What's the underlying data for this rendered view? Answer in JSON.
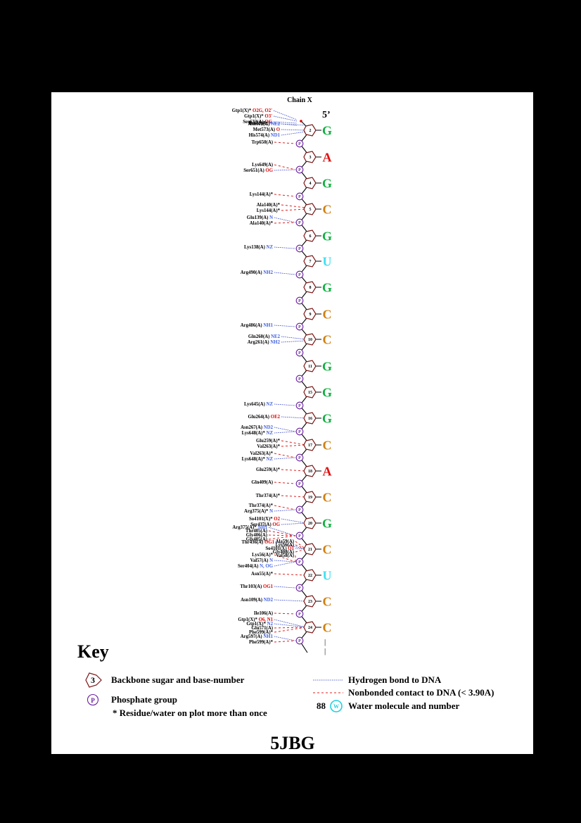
{
  "chain_title": "Chain X",
  "five_prime": "5’",
  "pdb_id": "5JBG",
  "nucleotides": [
    {
      "num": "2",
      "base": "G",
      "color": "#10b040"
    },
    {
      "num": "3",
      "base": "A",
      "color": "#e01010"
    },
    {
      "num": "4",
      "base": "G",
      "color": "#10b040"
    },
    {
      "num": "5",
      "base": "C",
      "color": "#d08010"
    },
    {
      "num": "6",
      "base": "G",
      "color": "#10b040"
    },
    {
      "num": "7",
      "base": "U",
      "color": "#40e0f0"
    },
    {
      "num": "8",
      "base": "G",
      "color": "#10b040"
    },
    {
      "num": "9",
      "base": "C",
      "color": "#d08010"
    },
    {
      "num": "10",
      "base": "C",
      "color": "#d08010"
    },
    {
      "num": "11",
      "base": "G",
      "color": "#10b040"
    },
    {
      "num": "15",
      "base": "G",
      "color": "#10b040"
    },
    {
      "num": "16",
      "base": "G",
      "color": "#10b040"
    },
    {
      "num": "17",
      "base": "C",
      "color": "#d08010"
    },
    {
      "num": "18",
      "base": "A",
      "color": "#e01010"
    },
    {
      "num": "19",
      "base": "C",
      "color": "#d08010"
    },
    {
      "num": "20",
      "base": "G",
      "color": "#10b040"
    },
    {
      "num": "21",
      "base": "C",
      "color": "#d08010"
    },
    {
      "num": "22",
      "base": "U",
      "color": "#40e0f0"
    },
    {
      "num": "23",
      "base": "C",
      "color": "#d08010"
    },
    {
      "num": "24",
      "base": "C",
      "color": "#d08010"
    }
  ],
  "phosphate_label": "P",
  "residues": [
    {
      "name": "Gtp1(X)*",
      "atom": "O2G, O2'",
      "t": "o",
      "type": "hb",
      "size": "n"
    },
    {
      "name": "Gtp1(X)*",
      "atom": "O3'",
      "t": "o",
      "type": "hb",
      "size": "n"
    },
    {
      "name": "Ser632(A)",
      "atom": "OG",
      "t": "o",
      "type": "hb",
      "size": "n"
    },
    {
      "name": "Ile630(A)",
      "atom": "N",
      "t": "n",
      "type": "hb",
      "size": "n"
    },
    {
      "name": "Asn609(A)",
      "atom": "NE2",
      "t": "n",
      "type": "hb",
      "size": "n"
    },
    {
      "name": "Met573(A)",
      "atom": "O",
      "t": "o",
      "type": "hb",
      "size": "n"
    },
    {
      "name": "His574(A)",
      "atom": "ND1",
      "t": "n",
      "type": "hb",
      "size": "n"
    },
    {
      "name": "Trp650(A)",
      "atom": "",
      "t": "",
      "type": "nb",
      "size": "n"
    },
    {
      "name": "Lys649(A)",
      "atom": "",
      "t": "",
      "type": "nb",
      "size": "n"
    },
    {
      "name": "Ser651(A)",
      "atom": "OG",
      "t": "o",
      "type": "hb",
      "size": "n"
    },
    {
      "name": "Lys144(A)*",
      "atom": "",
      "t": "",
      "type": "nb",
      "size": "n"
    },
    {
      "name": "Ala140(A)*",
      "atom": "",
      "t": "",
      "type": "nb",
      "size": "n"
    },
    {
      "name": "Lys144(A)*",
      "atom": "",
      "t": "",
      "type": "nb",
      "size": "n"
    },
    {
      "name": "Glu139(A)",
      "atom": "N",
      "t": "n",
      "type": "hb",
      "size": "n"
    },
    {
      "name": "Ala140(A)*",
      "atom": "",
      "t": "",
      "type": "nb",
      "size": "n"
    },
    {
      "name": "Lys138(A)",
      "atom": "NZ",
      "t": "n",
      "type": "hb",
      "size": "n"
    },
    {
      "name": "Arg490(A)",
      "atom": "NH2",
      "t": "n",
      "type": "hb",
      "size": "n"
    },
    {
      "name": "Arg486(A)",
      "atom": "NH1",
      "t": "n",
      "type": "hb",
      "size": "n"
    },
    {
      "name": "Gln260(A)",
      "atom": "NE2",
      "t": "n",
      "type": "hb",
      "size": "n"
    },
    {
      "name": "Arg261(A)",
      "atom": "NH2",
      "t": "n",
      "type": "hb",
      "size": "n"
    },
    {
      "name": "Lys645(A)",
      "atom": "NZ",
      "t": "n",
      "type": "hb",
      "size": "n"
    },
    {
      "name": "Glu264(A)",
      "atom": "OE2",
      "t": "o",
      "type": "hb",
      "size": "n"
    },
    {
      "name": "Asn267(A)",
      "atom": "ND2",
      "t": "n",
      "type": "hb",
      "size": "n"
    },
    {
      "name": "Lys648(A)*",
      "atom": "NZ",
      "t": "n",
      "type": "hb",
      "size": "n"
    },
    {
      "name": "Glu259(A)*",
      "atom": "",
      "t": "",
      "type": "nb",
      "size": "n"
    },
    {
      "name": "Val263(A)*",
      "atom": "",
      "t": "",
      "type": "nb",
      "size": "n"
    },
    {
      "name": "Val263(A)*",
      "atom": "",
      "t": "",
      "type": "nb",
      "size": "n"
    },
    {
      "name": "Lys648(A)*",
      "atom": "NZ",
      "t": "n",
      "type": "hb",
      "size": "n"
    },
    {
      "name": "Glu259(A)*",
      "atom": "",
      "t": "",
      "type": "nb",
      "size": "n"
    },
    {
      "name": "Gln409(A)",
      "atom": "",
      "t": "",
      "type": "nb",
      "size": "n"
    },
    {
      "name": "Thr374(A)*",
      "atom": "",
      "t": "",
      "type": "nb",
      "size": "n"
    },
    {
      "name": "Thr374(A)*",
      "atom": "",
      "t": "",
      "type": "nb",
      "size": "n"
    },
    {
      "name": "Arg375(A)*",
      "atom": "N",
      "t": "n",
      "type": "hb",
      "size": "n"
    },
    {
      "name": "So4101(X)*",
      "atom": "O2",
      "t": "o",
      "type": "hb",
      "size": "n"
    },
    {
      "name": "Ser437(A)",
      "atom": "OG",
      "t": "o",
      "type": "hb",
      "size": "n"
    },
    {
      "name": "Arg375(A)*",
      "atom": "NH1",
      "t": "n",
      "type": "hb",
      "size": "s"
    },
    {
      "name": "Thr405(A)",
      "atom": "",
      "t": "",
      "type": "nb",
      "size": "s"
    },
    {
      "name": "Gly406(A)",
      "atom": "",
      "t": "",
      "type": "nb",
      "size": "s"
    },
    {
      "name": "Gly405(A)",
      "atom": "",
      "t": "",
      "type": "nb",
      "size": "s"
    },
    {
      "name": "Thr436(A)",
      "atom": "OG1",
      "t": "o",
      "type": "hb",
      "size": "s"
    },
    {
      "name": "Ala59(A)",
      "atom": "",
      "t": "",
      "type": "nb",
      "size": "s"
    },
    {
      "name": "Lys56(A)",
      "atom": "",
      "t": "",
      "type": "nb",
      "size": "s"
    },
    {
      "name": "So4101(X)",
      "atom": "O1",
      "t": "o",
      "type": "hb",
      "size": "s"
    },
    {
      "name": "Gly408(A)",
      "atom": "",
      "t": "",
      "type": "nb",
      "size": "s"
    },
    {
      "name": "Val58(A)",
      "atom": "",
      "t": "",
      "type": "nb",
      "size": "s"
    },
    {
      "name": "Lys56(A)*",
      "atom": "",
      "t": "",
      "type": "nb",
      "size": "n"
    },
    {
      "name": "Val57(A)",
      "atom": "N",
      "t": "n",
      "type": "hb",
      "size": "n"
    },
    {
      "name": "Ser404(A)",
      "atom": "N, OG",
      "t": "n",
      "type": "hb",
      "size": "n"
    },
    {
      "name": "Asn55(A)*",
      "atom": "",
      "t": "",
      "type": "nb",
      "size": "n"
    },
    {
      "name": "Thr103(A)",
      "atom": "OG1",
      "t": "o",
      "type": "hb",
      "size": "n"
    },
    {
      "name": "Asn109(A)",
      "atom": "ND2",
      "t": "n",
      "type": "hb",
      "size": "n"
    },
    {
      "name": "Ile106(A)",
      "atom": "",
      "t": "",
      "type": "nb",
      "size": "n"
    },
    {
      "name": "Gtp1(X)*",
      "atom": "O6, N1",
      "t": "o",
      "type": "hb",
      "size": "s"
    },
    {
      "name": "Gtp1(X)*",
      "atom": "N2",
      "t": "n",
      "type": "hb",
      "size": "s"
    },
    {
      "name": "Glu571(A)",
      "atom": "",
      "t": "",
      "type": "nb",
      "size": "s"
    },
    {
      "name": "Phe599(A)*",
      "atom": "",
      "t": "",
      "type": "nb",
      "size": "s"
    },
    {
      "name": "Arg597(A)",
      "atom": "NH1",
      "t": "n",
      "type": "hb",
      "size": "n"
    },
    {
      "name": "Phe599(A)*",
      "atom": "",
      "t": "",
      "type": "nb",
      "size": "n"
    }
  ],
  "key": {
    "title": "Key",
    "sugar_sample": "3",
    "sugar_label": "Backbone sugar and base-number",
    "phosphate_sample": "P",
    "phosphate_label": "Phosphate group",
    "residue_note": "* Residue/water on plot more than once",
    "hbond_label": "Hydrogen bond to DNA",
    "nonbonded_label": "Nonbonded contact to DNA (< 3.90A)",
    "water_number": "88",
    "water_sample": "W",
    "water_label": "Water molecule and number"
  },
  "colors": {
    "hbond": "#3040c0",
    "nonbonded": "#e02020",
    "sugar": "#7a1515",
    "phosphate": "#6a1fa0",
    "water": "#20d0e0"
  }
}
